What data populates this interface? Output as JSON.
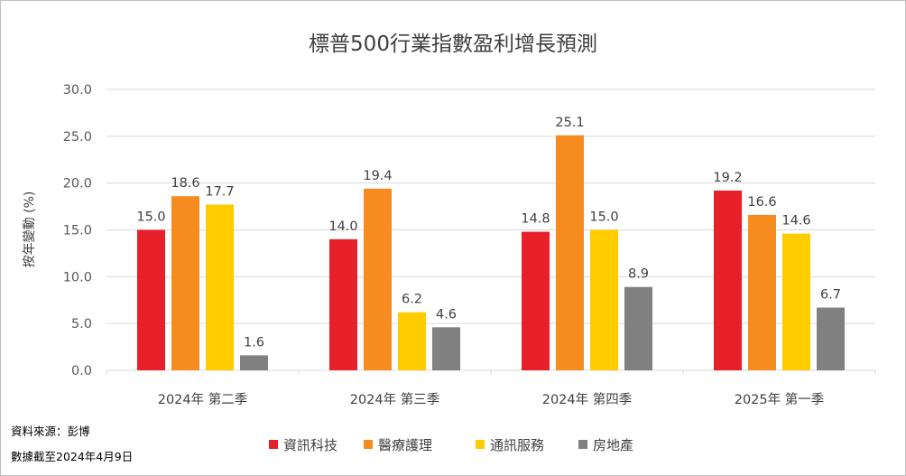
{
  "chart_data": {
    "type": "bar",
    "title": "標普500行業指數盈利增長預測",
    "ylabel": "按年變動 (%)",
    "ylim": [
      0,
      30
    ],
    "yticks": [
      "0.0",
      "5.0",
      "10.0",
      "15.0",
      "20.0",
      "25.0",
      "30.0"
    ],
    "categories": [
      "2024年 第二季",
      "2024年 第三季",
      "2024年 第四季",
      "2025年 第一季"
    ],
    "grid": true,
    "legend_position": "bottom",
    "series": [
      {
        "name": "資訊科技",
        "color": "#e8202a",
        "values": [
          15.0,
          14.0,
          14.8,
          19.2
        ],
        "labels": [
          "15.0",
          "14.0",
          "14.8",
          "19.2"
        ]
      },
      {
        "name": "醫療護理",
        "color": "#f68b1f",
        "values": [
          18.6,
          19.4,
          25.1,
          16.6
        ],
        "labels": [
          "18.6",
          "19.4",
          "25.1",
          "16.6"
        ]
      },
      {
        "name": "通訊服務",
        "color": "#ffcc00",
        "values": [
          17.7,
          6.2,
          15.0,
          14.6
        ],
        "labels": [
          "17.7",
          "6.2",
          "15.0",
          "14.6"
        ]
      },
      {
        "name": "房地產",
        "color": "#808080",
        "values": [
          1.6,
          4.6,
          8.9,
          6.7
        ],
        "labels": [
          "1.6",
          "4.6",
          "8.9",
          "6.7"
        ]
      }
    ]
  },
  "footnotes": {
    "source": "資料來源：彭博",
    "date": "數據截至2024年4月9日"
  }
}
